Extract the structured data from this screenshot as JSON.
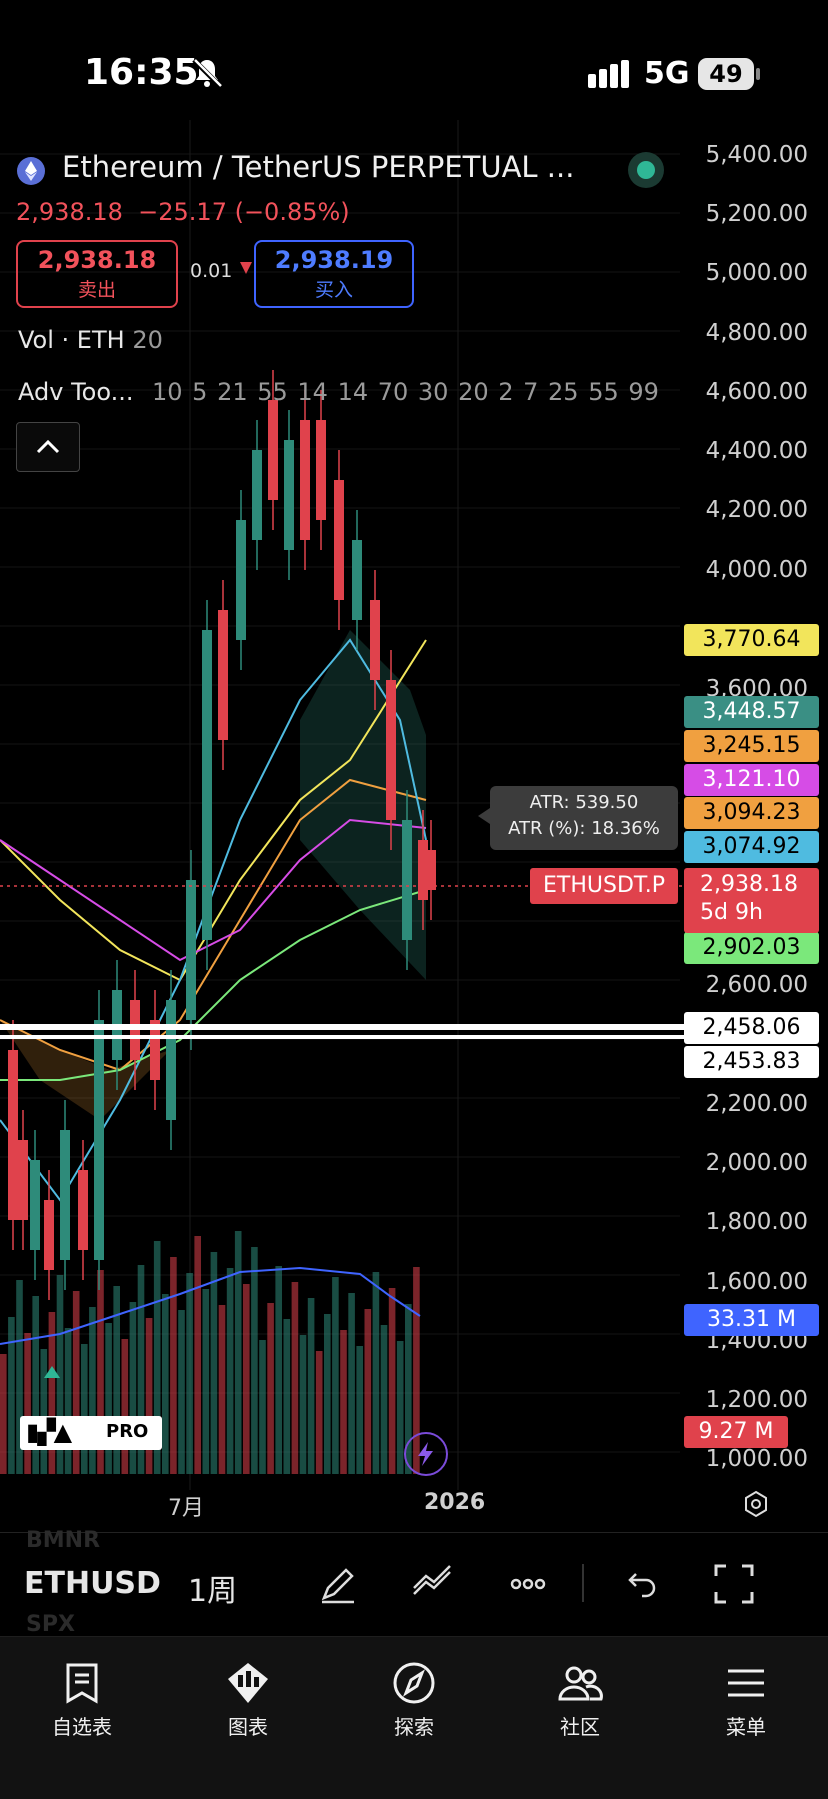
{
  "status_bar": {
    "time": "16:35",
    "network": "5G",
    "battery": "49"
  },
  "header": {
    "title": "Ethereum / TetherUS PERPETUAL ...",
    "last_price": "2,938.18",
    "change": "−25.17 (−0.85%)",
    "sell": {
      "price": "2,938.18",
      "label": "卖出"
    },
    "buy": {
      "price": "2,938.19",
      "label": "买入"
    },
    "spread": "0.01",
    "volume_indicator": {
      "name": "Vol · ETH",
      "value": "20"
    },
    "adv_tools": {
      "name": "Adv Too...",
      "values": "10 5 21 55 14 14 70 30 20 2 7 25 55 99"
    }
  },
  "price_axis": [
    "5,400.00",
    "5,200.00",
    "5,000.00",
    "4,800.00",
    "4,600.00",
    "4,400.00",
    "4,200.00",
    "4,000.00",
    "3,600.00",
    "2,600.00",
    "2,200.00",
    "2,000.00",
    "1,800.00",
    "1,600.00",
    "1,400.00",
    "1,200.00",
    "1,000.00"
  ],
  "tags": [
    {
      "value": "3,770.64",
      "bg": "#f2e55b",
      "fg": "#000000"
    },
    {
      "value": "3,448.57",
      "bg": "#3a8f84",
      "fg": "#ffffff"
    },
    {
      "value": "3,245.15",
      "bg": "#f0a040",
      "fg": "#000000"
    },
    {
      "value": "3,121.10",
      "bg": "#d64ce6",
      "fg": "#ffffff"
    },
    {
      "value": "3,094.23",
      "bg": "#f0a040",
      "fg": "#000000"
    },
    {
      "value": "3,074.92",
      "bg": "#4fbbe0",
      "fg": "#000000"
    },
    {
      "value": "2,902.03",
      "bg": "#7be87b",
      "fg": "#000000"
    },
    {
      "value": "2,458.06",
      "bg": "#ffffff",
      "fg": "#000000"
    },
    {
      "value": "2,453.83",
      "bg": "#ffffff",
      "fg": "#000000"
    },
    {
      "value": "33.31 M",
      "bg": "#3f64ff",
      "fg": "#ffffff"
    },
    {
      "value": "9.27 M",
      "bg": "#e0424c",
      "fg": "#ffffff"
    }
  ],
  "atr": {
    "line1": "ATR: 539.50",
    "line2": "ATR (%): 18.36%"
  },
  "last_tag": {
    "symbol": "ETHUSDT.P",
    "price": "2,938.18",
    "countdown": "5d 9h"
  },
  "time_axis": {
    "month": "7月",
    "year": "2026"
  },
  "logo_text": "PRO",
  "toolbar": {
    "symbol": "ETHUSD",
    "interval": "1周",
    "ghost_top": "BMNR",
    "ghost_bottom": "SPX"
  },
  "nav": [
    {
      "label": "自选表",
      "icon": "watchlist-icon"
    },
    {
      "label": "图表",
      "icon": "chart-icon"
    },
    {
      "label": "探索",
      "icon": "compass-icon"
    },
    {
      "label": "社区",
      "icon": "community-icon"
    },
    {
      "label": "菜单",
      "icon": "menu-icon"
    }
  ],
  "colors": {
    "up": "#2e8b7a",
    "down": "#e0424c",
    "bg": "#000000"
  }
}
